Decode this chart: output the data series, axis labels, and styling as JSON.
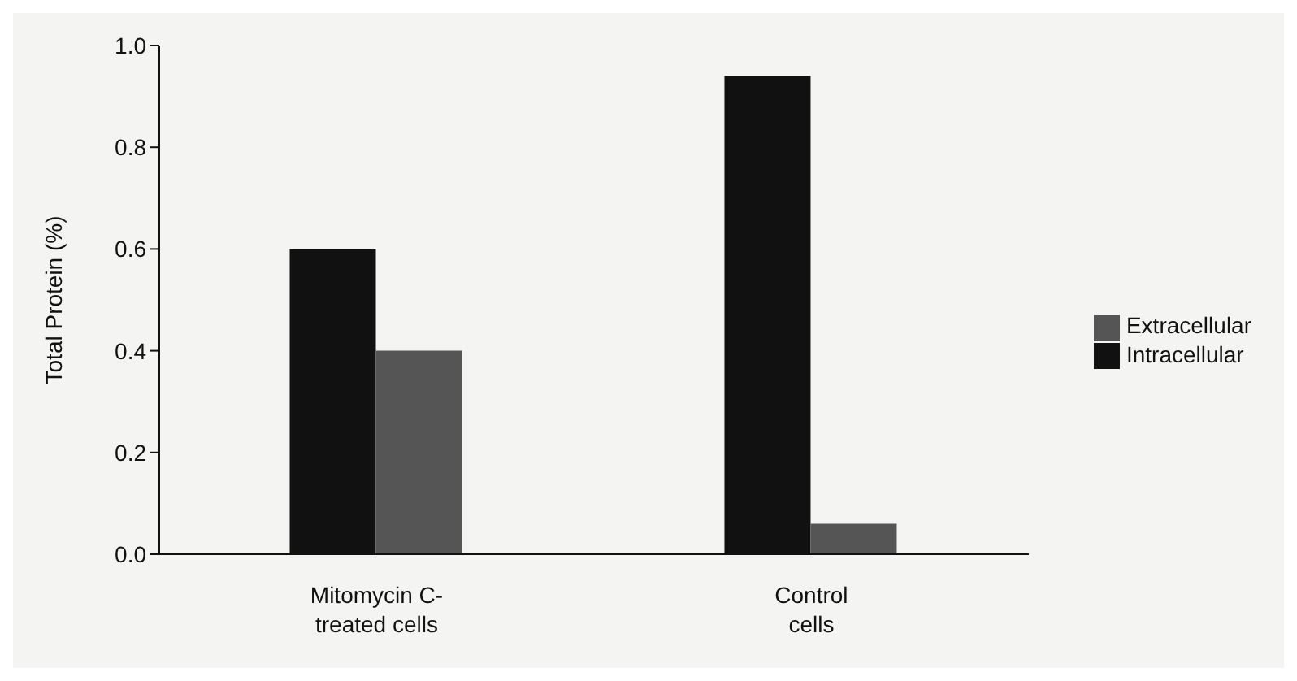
{
  "chart_data": {
    "type": "bar",
    "ylabel": "Total Protein (%)",
    "categories": [
      "Mitomycin C-\ntreated cells",
      "Control\ncells"
    ],
    "series": [
      {
        "name": "Intracellular",
        "color": "#111111",
        "values": [
          0.6,
          0.94
        ]
      },
      {
        "name": "Extracellular",
        "color": "#555555",
        "values": [
          0.4,
          0.06
        ]
      }
    ],
    "ylim": [
      0,
      1.0
    ],
    "yticks": [
      {
        "value": 0,
        "label": "0.0"
      },
      {
        "value": 0.2,
        "label": "0.2"
      },
      {
        "value": 0.4,
        "label": "0.4"
      },
      {
        "value": 0.6,
        "label": "0.6"
      },
      {
        "value": 0.8,
        "label": "0.8"
      },
      {
        "value": 1.0,
        "label": "1.0"
      }
    ],
    "grid": false,
    "legend": "right"
  }
}
